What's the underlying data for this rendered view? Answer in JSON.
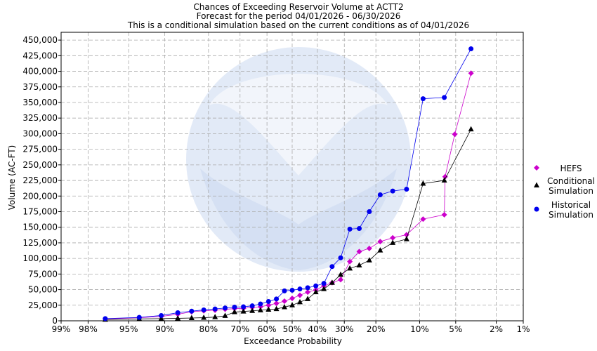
{
  "chart_data": {
    "type": "line",
    "title": [
      "Chances of Exceeding Reservoir Volume at ACTT2",
      "Forecast for the period 04/01/2026 - 06/30/2026",
      "This is a conditional simulation based on the current conditions as of 04/01/2026"
    ],
    "xlabel": "Exceedance Probability",
    "ylabel": "Volume (AC-FT)",
    "x_ticks": [
      "99%",
      "98%",
      "95%",
      "90%",
      "80%",
      "70%",
      "60%",
      "50%",
      "40%",
      "30%",
      "20%",
      "10%",
      "5%",
      "2%",
      "1%"
    ],
    "x_tick_probs": [
      99,
      98,
      95,
      90,
      80,
      70,
      60,
      50,
      40,
      30,
      20,
      10,
      5,
      2,
      1
    ],
    "y_ticks": [
      "0",
      "25,000",
      "50,000",
      "75,000",
      "100,000",
      "125,000",
      "150,000",
      "175,000",
      "200,000",
      "225,000",
      "250,000",
      "275,000",
      "300,000",
      "325,000",
      "350,000",
      "375,000",
      "400,000",
      "425,000",
      "450,000"
    ],
    "ylim": [
      0,
      462500
    ],
    "x_scale": "normal-probability",
    "grid": true,
    "legend_position": "right",
    "watermark": "NOAA",
    "series": [
      {
        "name": "HEFS",
        "marker": "diamond",
        "color": "#cc00cc",
        "points": [
          [
            97.0,
            3000
          ],
          [
            93.8,
            5000
          ],
          [
            90.6,
            7000
          ],
          [
            87.5,
            10500
          ],
          [
            84.4,
            14500
          ],
          [
            81.3,
            16000
          ],
          [
            78.1,
            17000
          ],
          [
            75.0,
            18500
          ],
          [
            71.9,
            19500
          ],
          [
            68.8,
            20000
          ],
          [
            65.6,
            21500
          ],
          [
            62.5,
            22500
          ],
          [
            59.4,
            25000
          ],
          [
            56.3,
            28000
          ],
          [
            53.1,
            31500
          ],
          [
            50.0,
            36000
          ],
          [
            46.9,
            41000
          ],
          [
            43.8,
            46000
          ],
          [
            40.6,
            49500
          ],
          [
            37.5,
            56000
          ],
          [
            34.4,
            61000
          ],
          [
            31.3,
            66000
          ],
          [
            28.1,
            95000
          ],
          [
            25.0,
            111000
          ],
          [
            21.9,
            116000
          ],
          [
            18.8,
            127000
          ],
          [
            15.6,
            133000
          ],
          [
            12.5,
            138000
          ],
          [
            9.4,
            163000
          ],
          [
            6.3,
            170000
          ],
          [
            6.2,
            231000
          ],
          [
            5.1,
            299000
          ],
          [
            3.6,
            397000
          ]
        ]
      },
      {
        "name": "Conditional Simulation",
        "marker": "triangle",
        "color": "#000000",
        "points": [
          [
            97.0,
            2000
          ],
          [
            93.8,
            3000
          ],
          [
            90.6,
            3500
          ],
          [
            87.5,
            4000
          ],
          [
            84.4,
            4500
          ],
          [
            81.3,
            5000
          ],
          [
            78.1,
            6000
          ],
          [
            75.0,
            8000
          ],
          [
            71.9,
            14000
          ],
          [
            68.8,
            15000
          ],
          [
            65.6,
            16000
          ],
          [
            62.5,
            17000
          ],
          [
            59.4,
            18000
          ],
          [
            56.3,
            19000
          ],
          [
            53.1,
            22000
          ],
          [
            50.0,
            25000
          ],
          [
            46.9,
            30000
          ],
          [
            43.8,
            35000
          ],
          [
            40.6,
            46000
          ],
          [
            37.5,
            51000
          ],
          [
            34.4,
            61000
          ],
          [
            31.3,
            74000
          ],
          [
            28.1,
            84000
          ],
          [
            25.0,
            89000
          ],
          [
            21.9,
            97000
          ],
          [
            18.8,
            113000
          ],
          [
            15.6,
            125000
          ],
          [
            12.5,
            131000
          ],
          [
            9.4,
            220000
          ],
          [
            6.3,
            225000
          ],
          [
            3.6,
            307000
          ]
        ]
      },
      {
        "name": "Historical Simulation",
        "marker": "circle",
        "color": "#0000ee",
        "points": [
          [
            97.0,
            3500
          ],
          [
            93.8,
            5500
          ],
          [
            90.6,
            8500
          ],
          [
            87.5,
            13000
          ],
          [
            84.4,
            15500
          ],
          [
            81.3,
            17500
          ],
          [
            78.1,
            19000
          ],
          [
            75.0,
            20500
          ],
          [
            71.9,
            22000
          ],
          [
            68.8,
            22500
          ],
          [
            65.6,
            24000
          ],
          [
            62.5,
            27000
          ],
          [
            59.4,
            31000
          ],
          [
            56.3,
            35000
          ],
          [
            53.1,
            48000
          ],
          [
            50.0,
            49000
          ],
          [
            46.9,
            51000
          ],
          [
            43.8,
            53000
          ],
          [
            40.6,
            56000
          ],
          [
            37.5,
            60000
          ],
          [
            34.4,
            87000
          ],
          [
            31.3,
            101000
          ],
          [
            28.1,
            147000
          ],
          [
            25.0,
            148000
          ],
          [
            21.9,
            175000
          ],
          [
            18.8,
            202000
          ],
          [
            15.6,
            208000
          ],
          [
            12.5,
            211000
          ],
          [
            9.4,
            356000
          ],
          [
            6.3,
            358000
          ],
          [
            3.6,
            436000
          ]
        ]
      }
    ],
    "legend": [
      {
        "label_lines": [
          "HEFS"
        ]
      },
      {
        "label_lines": [
          "Conditional",
          "Simulation"
        ]
      },
      {
        "label_lines": [
          "Historical",
          "Simulation"
        ]
      }
    ]
  }
}
